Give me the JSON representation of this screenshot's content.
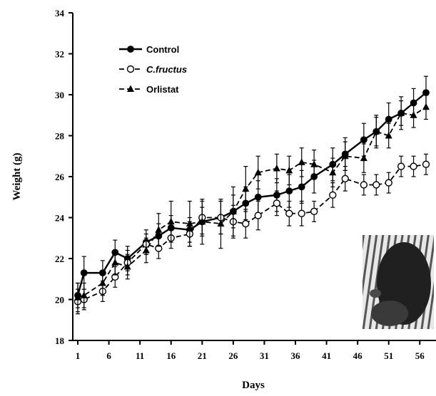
{
  "chart_data": {
    "type": "line",
    "xlabel": "Days",
    "ylabel": "Weight (g)",
    "xlim": [
      1,
      57
    ],
    "ylim": [
      18,
      34
    ],
    "x_ticks": [
      1,
      6,
      11,
      16,
      21,
      26,
      31,
      36,
      41,
      46,
      51,
      56
    ],
    "y_ticks": [
      18,
      20,
      22,
      24,
      26,
      28,
      30,
      32,
      34
    ],
    "grid": false,
    "legend_position": "top-left",
    "x": [
      1,
      2,
      5,
      7,
      9,
      12,
      14,
      16,
      19,
      21,
      24,
      26,
      28,
      30,
      33,
      35,
      37,
      39,
      42,
      44,
      47,
      49,
      51,
      53,
      55,
      57
    ],
    "series": [
      {
        "name": "Control",
        "marker": "filled-circle",
        "line": "solid",
        "values": [
          20.2,
          21.3,
          21.3,
          22.3,
          22.0,
          22.8,
          23.1,
          23.5,
          23.4,
          23.8,
          24.0,
          24.3,
          24.7,
          25.0,
          25.1,
          25.3,
          25.5,
          26.0,
          26.6,
          27.1,
          27.8,
          28.2,
          28.8,
          29.1,
          29.6,
          30.1
        ],
        "errors": [
          0.6,
          0.8,
          0.6,
          0.6,
          0.6,
          0.6,
          0.6,
          0.6,
          0.6,
          0.7,
          0.8,
          0.8,
          0.8,
          0.8,
          0.8,
          0.8,
          0.8,
          0.8,
          0.8,
          0.8,
          0.8,
          0.8,
          0.8,
          0.8,
          0.7,
          0.8
        ]
      },
      {
        "name": "C.fructus",
        "marker": "open-circle",
        "line": "dashed",
        "values": [
          19.9,
          20.0,
          20.4,
          21.1,
          21.8,
          22.7,
          22.5,
          23.0,
          23.2,
          24.0,
          24.0,
          23.8,
          23.7,
          24.1,
          24.7,
          24.2,
          24.2,
          24.3,
          25.1,
          25.9,
          25.6,
          25.6,
          25.7,
          26.5,
          26.5,
          26.6
        ],
        "errors": [
          0.6,
          0.5,
          0.5,
          0.5,
          0.6,
          0.5,
          0.5,
          0.5,
          0.6,
          0.8,
          0.8,
          0.8,
          0.7,
          0.7,
          0.6,
          0.6,
          0.6,
          0.5,
          0.6,
          0.6,
          0.5,
          0.5,
          0.5,
          0.5,
          0.5,
          0.5
        ]
      },
      {
        "name": "Orlistat",
        "marker": "filled-triangle",
        "line": "dashed",
        "values": [
          20.1,
          20.2,
          20.8,
          21.8,
          21.6,
          22.4,
          23.4,
          23.8,
          23.7,
          23.8,
          23.7,
          24.3,
          25.4,
          26.2,
          26.4,
          26.3,
          26.7,
          26.6,
          26.2,
          27.0,
          26.9,
          28.2,
          28.0,
          29.1,
          29.0,
          29.4
        ],
        "errors": [
          0.7,
          0.6,
          0.6,
          0.6,
          0.6,
          0.6,
          0.8,
          1.0,
          1.1,
          1.1,
          1.2,
          1.2,
          1.1,
          0.8,
          0.7,
          0.7,
          0.7,
          0.7,
          0.7,
          0.7,
          0.7,
          0.7,
          0.6,
          0.6,
          0.6,
          0.6
        ]
      }
    ],
    "inset_photo": "mouse-photo"
  }
}
